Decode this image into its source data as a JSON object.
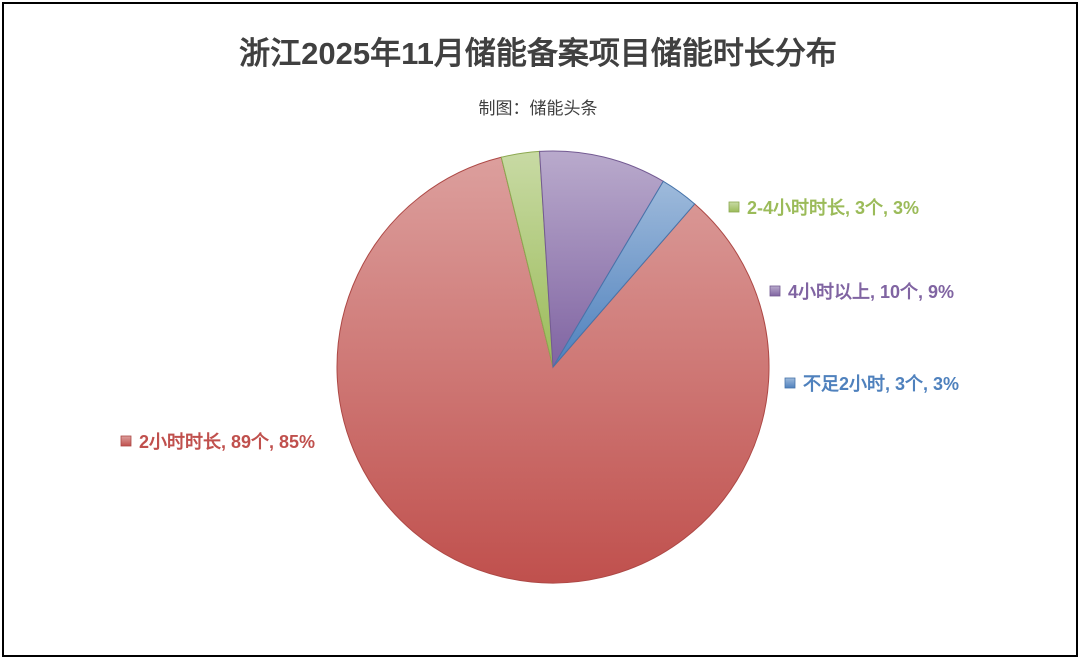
{
  "chart_data": {
    "type": "pie",
    "title": "浙江2025年11月储能备案项目储能时长分布",
    "subtitle": "制图：储能头条",
    "slices": [
      {
        "label": "2小时时长, 89个, 85%",
        "category": "2小时时长",
        "count": 89,
        "percent": 85,
        "color": "#c0504d"
      },
      {
        "label": "2-4小时时长, 3个, 3%",
        "category": "2-4小时时长",
        "count": 3,
        "percent": 3,
        "color": "#9bbb59"
      },
      {
        "label": "4小时以上, 10个, 9%",
        "category": "4小时以上",
        "count": 10,
        "percent": 9,
        "color": "#8064a2"
      },
      {
        "label": "不足2小时, 3个, 3%",
        "category": "不足2小时",
        "count": 3,
        "percent": 3,
        "color": "#4f81bd"
      }
    ]
  }
}
